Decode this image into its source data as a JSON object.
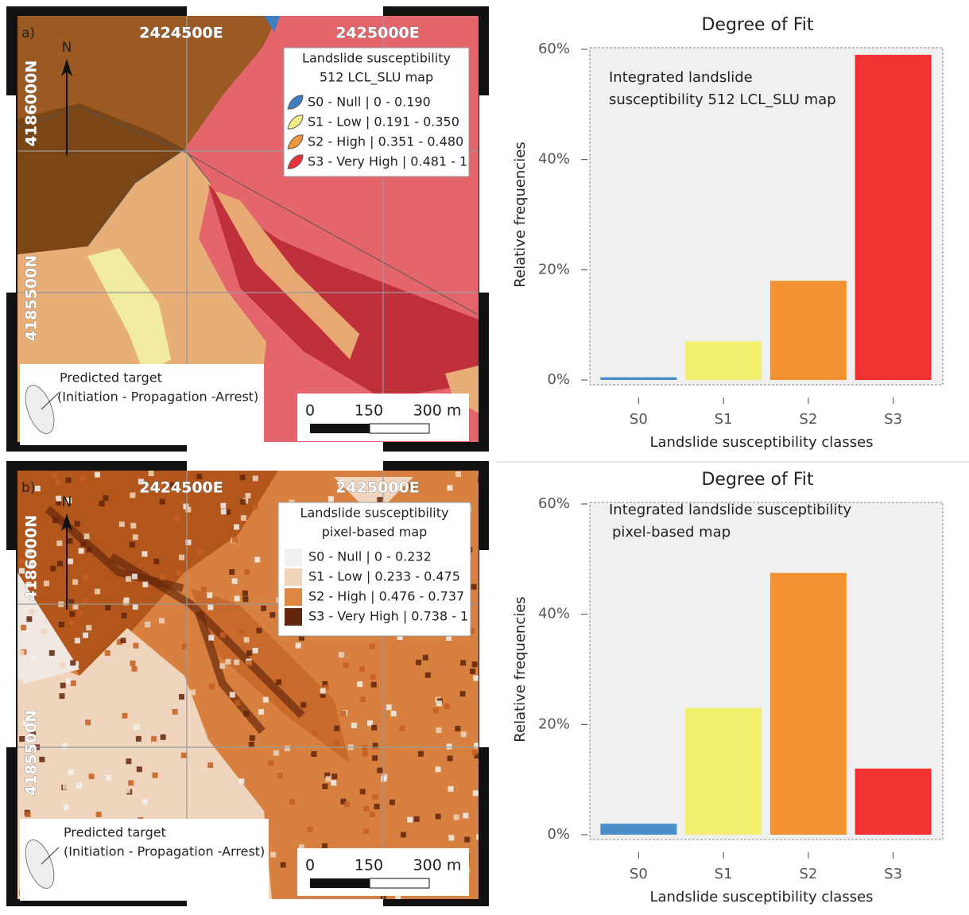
{
  "maps": [
    {
      "label": "a)",
      "easting": [
        "2424500E",
        "2425000E"
      ],
      "northing": [
        "4186000N",
        "4185500N"
      ],
      "north": "N",
      "legend": {
        "title": [
          "Landslide susceptibility",
          "512 LCL_SLU map"
        ],
        "items": [
          {
            "label": "S0 - Null | 0 - 0.190",
            "color": "#3d7fbf"
          },
          {
            "label": "S1 - Low | 0.191 - 0.350",
            "color": "#f3ef86"
          },
          {
            "label": "S2 - High | 0.351 - 0.480",
            "color": "#f0963a"
          },
          {
            "label": "S3 - Very High | 0.481 - 1",
            "color": "#ec3238"
          }
        ]
      },
      "target": [
        "Predicted target",
        "(Initiation - Propagation -Arrest)"
      ],
      "scale": [
        "0",
        "150",
        "300 m"
      ]
    },
    {
      "label": "b)",
      "easting": [
        "2424500E",
        "2425000E"
      ],
      "northing": [
        "4186000N",
        "4185500N"
      ],
      "north": "N",
      "legend": {
        "title": [
          "Landslide susceptibility",
          "pixel-based map"
        ],
        "items": [
          {
            "label": "S0 - Null | 0 - 0.232",
            "color": "#f3f1ef"
          },
          {
            "label": "S1 - Low | 0.233 - 0.475",
            "color": "#f2d4b8"
          },
          {
            "label": "S2 - High | 0.476 - 0.737",
            "color": "#df8642"
          },
          {
            "label": "S3 - Very High | 0.738 - 1",
            "color": "#62240a"
          }
        ]
      },
      "target": [
        "Predicted target",
        "(Initiation - Propagation -Arrest)"
      ],
      "scale": [
        "0",
        "150",
        "300 m"
      ]
    }
  ],
  "chart_data": [
    {
      "type": "bar",
      "title": "Degree of Fit",
      "annotation": [
        "Integrated landslide",
        "susceptibility 512 LCL_SLU map"
      ],
      "x_label": "Landslide susceptibility classes",
      "y_label": "Relative frequencies",
      "categories": [
        "S0",
        "S1",
        "S2",
        "S3"
      ],
      "values": [
        0.5,
        7,
        18,
        59
      ],
      "colors": [
        "#4a8fc9",
        "#f2ef6e",
        "#f39230",
        "#f03232"
      ],
      "ylim": [
        0,
        60
      ],
      "yticks": [
        {
          "value": 0,
          "label": "0%"
        },
        {
          "value": 20,
          "label": "20%"
        },
        {
          "value": 40,
          "label": "40%"
        },
        {
          "value": 60,
          "label": "60%"
        }
      ]
    },
    {
      "type": "bar",
      "title": "Degree of Fit",
      "annotation": [
        "Integrated landslide susceptibility",
        "pixel-based map"
      ],
      "x_label": "Landslide susceptibility classes",
      "y_label": "Relative frequencies",
      "categories": [
        "S0",
        "S1",
        "S2",
        "S3"
      ],
      "values": [
        2,
        23,
        47.5,
        12
      ],
      "colors": [
        "#4a8fc9",
        "#f2ef6e",
        "#f39230",
        "#f03232"
      ],
      "ylim": [
        0,
        60
      ],
      "yticks": [
        {
          "value": 0,
          "label": "0%"
        },
        {
          "value": 20,
          "label": "20%"
        },
        {
          "value": 40,
          "label": "40%"
        },
        {
          "value": 60,
          "label": "60%"
        }
      ]
    }
  ]
}
